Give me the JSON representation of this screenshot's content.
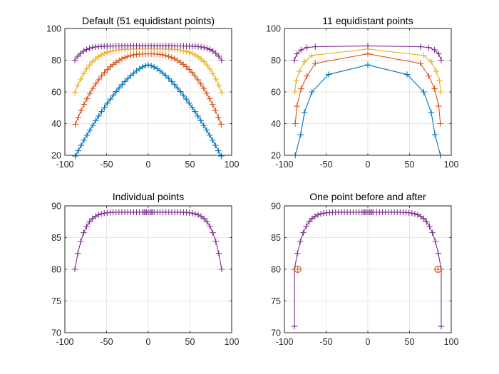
{
  "figure": {
    "background": "#ffffff"
  },
  "chart_data": [
    {
      "type": "line",
      "title": "Default (51 equidistant points)",
      "xlabel": "",
      "ylabel": "",
      "xlim": [
        -100,
        100
      ],
      "ylim": [
        20,
        100
      ],
      "xticks": [
        "-100",
        "-50",
        "0",
        "50",
        "100"
      ],
      "yticks": [
        "20",
        "40",
        "60",
        "80",
        "100"
      ],
      "grid": true,
      "legend": "none",
      "sampling": {
        "mode": "equidistant",
        "n": 51
      },
      "series": [
        {
          "color": "#0072BD",
          "marker": "+",
          "curve": {
            "xmax": 87.5,
            "ypeak": 77,
            "yedge": 19.5,
            "shape": 1.5
          }
        },
        {
          "color": "#D95319",
          "marker": "+",
          "curve": {
            "xmax": 87.5,
            "ypeak": 84,
            "yedge": 39.5,
            "shape": 2.6
          }
        },
        {
          "color": "#EDB120",
          "marker": "+",
          "curve": {
            "xmax": 88,
            "ypeak": 87,
            "yedge": 59.5,
            "shape": 4.5
          }
        },
        {
          "color": "#7E2F8E",
          "marker": "+",
          "curve": {
            "xmax": 88,
            "ypeak": 89,
            "yedge": 80,
            "shape": 8
          }
        }
      ]
    },
    {
      "type": "line",
      "title": "11 equidistant points",
      "xlabel": "",
      "ylabel": "",
      "xlim": [
        -100,
        100
      ],
      "ylim": [
        20,
        100
      ],
      "xticks": [
        "-100",
        "-50",
        "0",
        "50",
        "100"
      ],
      "yticks": [
        "20",
        "40",
        "60",
        "80",
        "100"
      ],
      "grid": true,
      "legend": "none",
      "series": [
        {
          "color": "#0072BD",
          "marker": "+",
          "x": [
            -87,
            -80.5,
            -76,
            -67,
            -47,
            0,
            47,
            67,
            76,
            80.5,
            87
          ],
          "y": [
            20,
            33,
            47,
            60,
            71,
            77,
            71,
            60,
            47,
            33,
            20
          ]
        },
        {
          "color": "#D95319",
          "marker": "+",
          "x": [
            -87,
            -85,
            -80,
            -73,
            -63,
            0,
            63,
            73,
            80,
            85,
            87
          ],
          "y": [
            40,
            51,
            62,
            70,
            78,
            84,
            78,
            70,
            62,
            51,
            40
          ]
        },
        {
          "color": "#EDB120",
          "marker": "+",
          "x": [
            -87.5,
            -86,
            -82,
            -76,
            -67,
            0,
            67,
            76,
            82,
            86,
            87.5
          ],
          "y": [
            60,
            67,
            73,
            79,
            83,
            87,
            83,
            79,
            73,
            67,
            60
          ]
        },
        {
          "color": "#7E2F8E",
          "marker": "+",
          "x": [
            -88,
            -85,
            -80,
            -73,
            -63,
            0,
            63,
            73,
            80,
            85,
            88
          ],
          "y": [
            80,
            84,
            86.5,
            88,
            88.5,
            89,
            88.5,
            88,
            86.5,
            84,
            80
          ]
        }
      ]
    },
    {
      "type": "line",
      "title": "Individual points",
      "xlabel": "",
      "ylabel": "",
      "xlim": [
        -100,
        100
      ],
      "ylim": [
        70,
        90
      ],
      "xticks": [
        "-100",
        "-50",
        "0",
        "50",
        "100"
      ],
      "yticks": [
        "70",
        "75",
        "80",
        "85",
        "90"
      ],
      "grid": true,
      "legend": "none",
      "series": [
        {
          "color": "#7E2F8E",
          "marker": "+",
          "curve": {
            "xmax": 88,
            "ypeak": 89,
            "yedge": 80,
            "shape": 8
          },
          "extra_x": [
            -5,
            -2,
            2,
            5
          ]
        }
      ]
    },
    {
      "type": "line",
      "title": "One point before and after",
      "xlabel": "",
      "ylabel": "",
      "xlim": [
        -100,
        100
      ],
      "ylim": [
        70,
        90
      ],
      "xticks": [
        "-100",
        "-50",
        "0",
        "50",
        "100"
      ],
      "yticks": [
        "70",
        "75",
        "80",
        "85",
        "90"
      ],
      "grid": true,
      "legend": "none",
      "series": [
        {
          "color": "#7E2F8E",
          "marker": "+",
          "curve": {
            "xmax": 88,
            "ypeak": 89,
            "yedge": 80,
            "shape": 8
          },
          "extra_x": [
            -5,
            -2,
            2,
            5
          ],
          "before_after": {
            "x": [
              -88,
              88
            ],
            "y": 71
          }
        }
      ],
      "highlights": {
        "color": "#D95319",
        "marker": "o",
        "x": [
          -84,
          84
        ],
        "y": [
          80,
          80
        ]
      }
    }
  ]
}
